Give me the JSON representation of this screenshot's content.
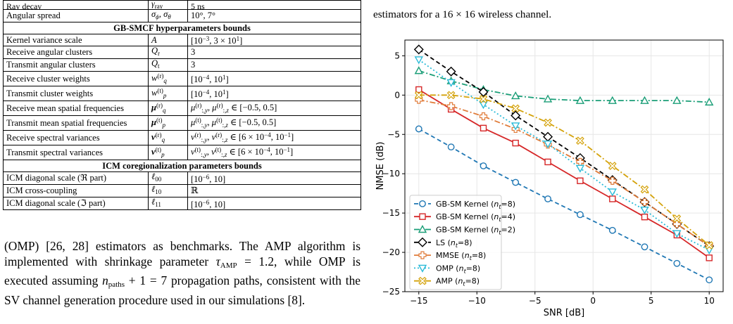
{
  "table": {
    "top_rows": [
      {
        "name": "Ray decay",
        "symbol": "γray",
        "value": "5 ns"
      },
      {
        "name": "Angular spread",
        "symbol": "σϕ, σθ",
        "value": "10°, 7°"
      }
    ],
    "sections": [
      {
        "title": "GB-SMCF hyperparameters bounds",
        "rows": [
          {
            "name": "Kernel variance scale",
            "symbol": "A",
            "value": "[10−3, 3 × 101]"
          },
          {
            "name": "Receive angular clusters",
            "symbol": "Qr",
            "value": "3"
          },
          {
            "name": "Transmit angular clusters",
            "symbol": "Qt",
            "value": "3"
          },
          {
            "name": "Receive cluster weights",
            "symbol": "wq(r)",
            "value": "[10−4, 101]"
          },
          {
            "name": "Transmit cluster weights",
            "symbol": "wp(t)",
            "value": "[10−4, 101]"
          },
          {
            "name": "Receive mean spatial frequencies",
            "symbol": "μq(r)",
            "value": "μ:,y(r), μ:,z(r) ∈ [−0.5, 0.5]"
          },
          {
            "name": "Transmit mean spatial frequencies",
            "symbol": "μp(t)",
            "value": "μ:,y(t), μ:,z(t) ∈ [−0.5, 0.5]"
          },
          {
            "name": "Receive spectral variances",
            "symbol": "vq(r)",
            "value": "v:,y(r), v:,z(r) ∈ [6 × 10−4, 10−1]"
          },
          {
            "name": "Transmit spectral variances",
            "symbol": "vp(t)",
            "value": "v:,y(t), v:,z(t) ∈ [6 × 10−4, 10−1]"
          }
        ]
      },
      {
        "title": "ICM coregionalization parameters bounds",
        "rows": [
          {
            "name": "ICM diagonal scale (ℜ part)",
            "symbol": "ℓ00",
            "value": "[10−6, 10]"
          },
          {
            "name": "ICM cross-coupling",
            "symbol": "ℓ10",
            "value": "ℝ"
          },
          {
            "name": "ICM diagonal scale (ℑ part)",
            "symbol": "ℓ11",
            "value": "[10−6, 10]"
          }
        ]
      }
    ]
  },
  "body_text": "(OMP) [26, 28] estimators as benchmarks. The AMP algorithm is implemented with shrinkage parameter τAMP = 1.2, while OMP is executed assuming npaths + 1 = 7 propagation paths, consistent with the SV channel generation procedure used in our simulations [8].",
  "caption_text": "estimators for a 16 × 16 wireless channel.",
  "chart_data": {
    "type": "line",
    "xlabel": "SNR [dB]",
    "ylabel": "NMSE (dB)",
    "xlim": [
      -16.2,
      11.2
    ],
    "ylim": [
      -25,
      7
    ],
    "xticks": [
      -15,
      -10,
      -5,
      0,
      5,
      10
    ],
    "yticks": [
      5,
      0,
      -5,
      -10,
      -15,
      -20,
      -25
    ],
    "grid": true,
    "legend_position": "lower-left",
    "x": [
      -15,
      -12.22,
      -9.44,
      -6.67,
      -3.89,
      -1.11,
      1.67,
      4.44,
      7.22,
      10
    ],
    "series": [
      {
        "name": "GB-SM Kernel (nt=8)",
        "color": "#1f77b4",
        "dash": "6,4",
        "marker": "circle",
        "values": [
          -4.3,
          -6.6,
          -9.0,
          -11.1,
          -13.2,
          -15.2,
          -17.2,
          -19.3,
          -21.4,
          -23.5
        ]
      },
      {
        "name": "GB-SM Kernel (nt=4)",
        "color": "#d62728",
        "dash": "",
        "marker": "square",
        "values": [
          0.7,
          -1.8,
          -4.2,
          -6.1,
          -8.5,
          -10.9,
          -13.2,
          -15.5,
          -17.8,
          -20.7
        ]
      },
      {
        "name": "GB-SM Kernel (nt=2)",
        "color": "#1a9e77",
        "dash": "8,3,2,3",
        "marker": "triangle-up",
        "values": [
          3.1,
          1.8,
          0.7,
          -0.1,
          -0.5,
          -0.7,
          -0.7,
          -0.7,
          -0.7,
          -0.9
        ]
      },
      {
        "name": "LS (nt=8)",
        "color": "#000000",
        "dash": "6,4",
        "marker": "diamond",
        "values": [
          5.8,
          3.0,
          0.4,
          -2.6,
          -5.3,
          -8.0,
          -10.8,
          -13.6,
          -16.4,
          -19.2
        ]
      },
      {
        "name": "MMSE (nt=8)",
        "color": "#e07b39",
        "dash": "8,3,2,3",
        "marker": "plus",
        "values": [
          -0.6,
          -1.4,
          -2.7,
          -4.3,
          -6.3,
          -8.5,
          -10.9,
          -13.6,
          -16.4,
          -19.2
        ]
      },
      {
        "name": "OMP (nt=8)",
        "color": "#2bbbd8",
        "dash": "2,3",
        "marker": "triangle-down",
        "values": [
          4.5,
          1.6,
          -1.2,
          -3.9,
          -6.2,
          -9.3,
          -12.3,
          -14.6,
          -17.6,
          -19.7
        ]
      },
      {
        "name": "AMP (nt=8)",
        "color": "#d4a20a",
        "dash": "8,3,2,3",
        "marker": "x",
        "values": [
          0.0,
          0.0,
          -0.5,
          -1.7,
          -3.5,
          -5.8,
          -9.0,
          -12.0,
          -15.7,
          -19.1
        ]
      }
    ]
  }
}
